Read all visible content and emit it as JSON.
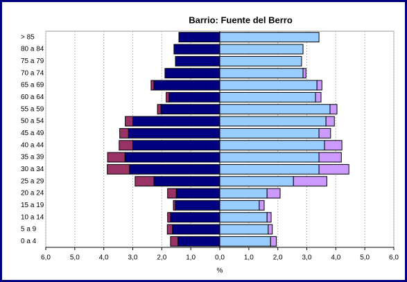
{
  "chart_data": {
    "type": "bar",
    "orientation": "horizontal",
    "stacked": true,
    "title": "Barrio: Fuente del Berro",
    "xlabel": "%",
    "categories": [
      "> 85",
      "80 a 84",
      "75 a 79",
      "70 a 74",
      "65 a 69",
      "60 a 64",
      "55 a 59",
      "50 a 54",
      "45 a 49",
      "40 a 44",
      "35 a 39",
      "30 a 34",
      "25 a 29",
      "20 a 24",
      "15 a 19",
      "10 a 14",
      "5 a 9",
      "0 a 4"
    ],
    "series": [
      {
        "color": "#000080",
        "values": [
          -1.41,
          -1.58,
          -1.53,
          -1.89,
          -2.27,
          -1.75,
          -2.03,
          -3.0,
          -3.15,
          -3.0,
          -3.27,
          -3.11,
          -2.27,
          -1.5,
          -1.53,
          -1.7,
          -1.63,
          -1.44
        ]
      },
      {
        "color": "#993366",
        "values": [
          0,
          0,
          0,
          0,
          -0.1,
          -0.1,
          -0.12,
          -0.26,
          -0.3,
          -0.47,
          -0.6,
          -0.77,
          -0.65,
          -0.3,
          -0.07,
          -0.1,
          -0.18,
          -0.26
        ]
      },
      {
        "color": "#99ccff",
        "values": [
          3.42,
          2.87,
          2.82,
          2.87,
          3.35,
          3.3,
          3.8,
          3.66,
          3.42,
          3.61,
          3.42,
          3.42,
          2.54,
          1.63,
          1.36,
          1.63,
          1.67,
          1.75
        ]
      },
      {
        "color": "#cc99ff",
        "values": [
          0,
          0,
          0,
          0.1,
          0.17,
          0.19,
          0.24,
          0.29,
          0.4,
          0.6,
          0.77,
          1.03,
          1.15,
          0.45,
          0.17,
          0.14,
          0.14,
          0.2
        ]
      }
    ],
    "xlim": [
      -6,
      6
    ],
    "xticks": [
      {
        "value": -6,
        "label": "6,0"
      },
      {
        "value": -5,
        "label": "5,0"
      },
      {
        "value": -4,
        "label": "4,0"
      },
      {
        "value": -3,
        "label": "3,0"
      },
      {
        "value": -2,
        "label": "2,0"
      },
      {
        "value": -1,
        "label": "1,0"
      },
      {
        "value": 0,
        "label": "0,0"
      },
      {
        "value": 1,
        "label": "1,0"
      },
      {
        "value": 2,
        "label": "2,0"
      },
      {
        "value": 3,
        "label": "3,0"
      },
      {
        "value": 4,
        "label": "4,0"
      },
      {
        "value": 5,
        "label": "5,0"
      },
      {
        "value": 6,
        "label": "6,0"
      }
    ],
    "grid": true
  }
}
